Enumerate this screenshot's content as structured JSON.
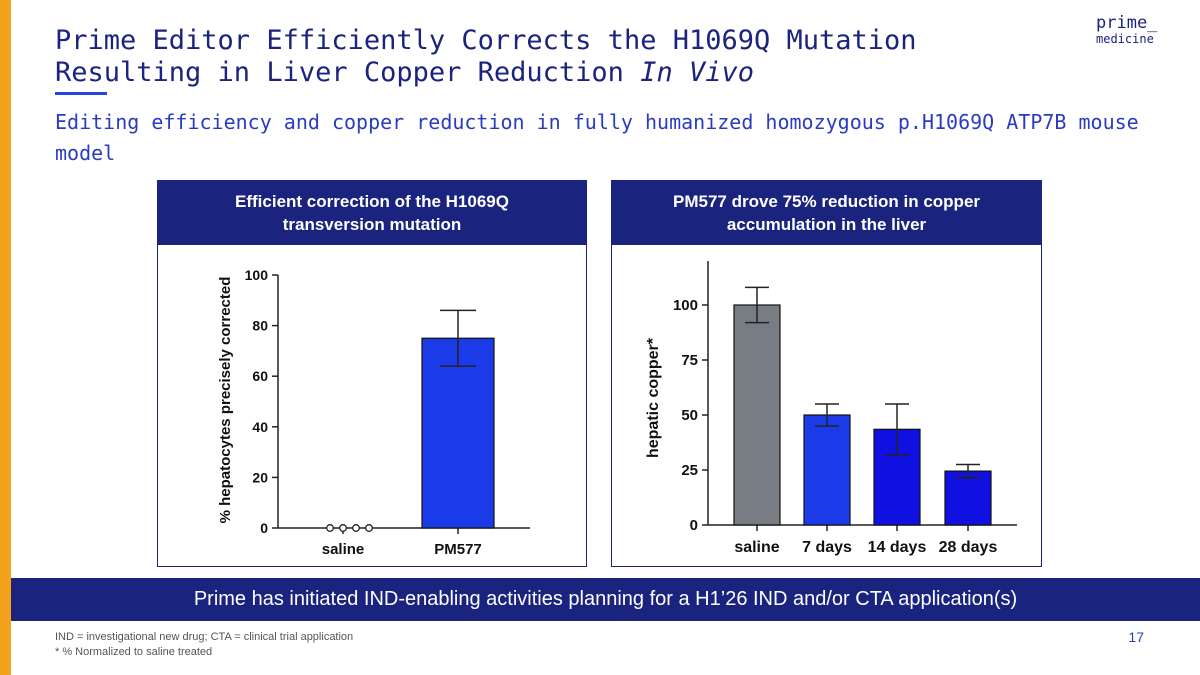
{
  "slide": {
    "title_line1": "Prime Editor Efficiently Corrects the H1069Q Mutation",
    "title_line2_prefix": "Resulting in Liver Copper Reduction ",
    "title_line2_italic": "In Vivo",
    "subtitle": "Editing efficiency and copper reduction in fully humanized homozygous p.H1069Q ATP7B mouse model",
    "logo_line1": "prime_",
    "logo_line2": "medicine",
    "banner": "Prime has initiated IND-enabling activities planning for a H1’26 IND and/or CTA application(s)",
    "footnote1": "IND = investigational new drug; CTA = clinical trial application",
    "footnote2": "* % Normalized to saline treated",
    "page_number": "17",
    "colors": {
      "navy": "#1a237e",
      "accent_orange": "#f4a21c",
      "accent_blue": "#2745e0"
    }
  },
  "chart_data": [
    {
      "type": "bar",
      "header": "Efficient correction of the H1069Q transversion mutation",
      "categories": [
        "saline",
        "PM577"
      ],
      "values": [
        0,
        75
      ],
      "error": [
        0,
        11
      ],
      "saline_points": [
        0,
        0,
        0,
        0
      ],
      "colors": [
        "#ffffff",
        "#1c3be8"
      ],
      "ylabel": "% hepatocytes precisely corrected",
      "ylim": [
        0,
        100
      ],
      "yticks": [
        0,
        20,
        40,
        60,
        80,
        100
      ]
    },
    {
      "type": "bar",
      "header": "PM577 drove 75% reduction in copper accumulation in the liver",
      "categories": [
        "saline",
        "7 days",
        "14 days",
        "28 days"
      ],
      "values": [
        100,
        50,
        43.5,
        24.5
      ],
      "error": [
        8,
        5,
        11.5,
        3
      ],
      "colors": [
        "#787d84",
        "#1c3be8",
        "#1010e0",
        "#1010e0"
      ],
      "ylabel": "hepatic copper*",
      "ylim": [
        0,
        120
      ],
      "yticks": [
        0,
        25,
        50,
        75,
        100
      ]
    }
  ]
}
